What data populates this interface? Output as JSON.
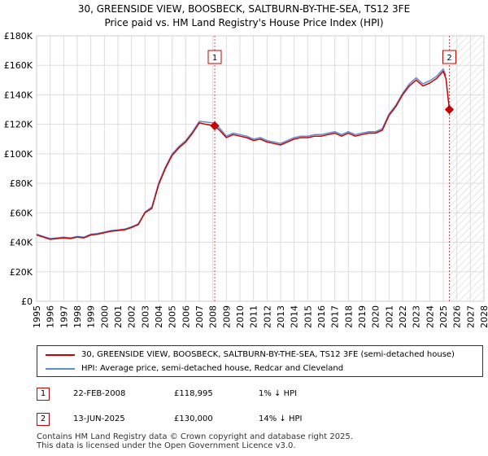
{
  "header": {
    "title_line1": "30, GREENSIDE VIEW, BOOSBECK, SALTBURN-BY-THE-SEA, TS12 3FE",
    "title_line2": "Price paid vs. HM Land Registry's House Price Index (HPI)"
  },
  "chart_data": {
    "type": "line",
    "xlim": [
      1995,
      2028
    ],
    "ylim": [
      0,
      180000
    ],
    "y_ticks": [
      0,
      20000,
      40000,
      60000,
      80000,
      100000,
      120000,
      140000,
      160000,
      180000
    ],
    "y_tick_labels": [
      "£0",
      "£20K",
      "£40K",
      "£60K",
      "£80K",
      "£100K",
      "£120K",
      "£140K",
      "£160K",
      "£180K"
    ],
    "x_ticks": [
      1995,
      1996,
      1997,
      1998,
      1999,
      2000,
      2001,
      2002,
      2003,
      2004,
      2005,
      2006,
      2007,
      2008,
      2009,
      2010,
      2011,
      2012,
      2013,
      2014,
      2015,
      2016,
      2017,
      2018,
      2019,
      2020,
      2021,
      2022,
      2023,
      2024,
      2025,
      2026,
      2027,
      2028
    ],
    "x_tick_labels": [
      "1995",
      "1996",
      "1997",
      "1998",
      "1999",
      "2000",
      "2001",
      "2002",
      "2003",
      "2004",
      "2005",
      "2006",
      "2007",
      "2008",
      "2009",
      "2010",
      "2011",
      "2012",
      "2013",
      "2014",
      "2015",
      "2016",
      "2017",
      "2018",
      "2019",
      "2020",
      "2021",
      "2022",
      "2023",
      "2024",
      "2025",
      "2026",
      "2027",
      "2028"
    ],
    "grid": true,
    "forecast_from": 2025.45,
    "series": [
      {
        "name": "30, GREENSIDE VIEW, BOOSBECK, SALTBURN-BY-THE-SEA, TS12 3FE (semi-detached house)",
        "color": "#cc0000",
        "x": [
          1995,
          1995.5,
          1996,
          1996.5,
          1997,
          1997.5,
          1998,
          1998.5,
          1999,
          1999.5,
          2000,
          2000.5,
          2001,
          2001.5,
          2002,
          2002.5,
          2003,
          2003.5,
          2004,
          2004.5,
          2005,
          2005.5,
          2006,
          2006.5,
          2007,
          2007.5,
          2008.14,
          2008.5,
          2009,
          2009.5,
          2010,
          2010.5,
          2011,
          2011.5,
          2012,
          2012.5,
          2013,
          2013.5,
          2014,
          2014.5,
          2015,
          2015.5,
          2016,
          2016.5,
          2017,
          2017.5,
          2018,
          2018.5,
          2019,
          2019.5,
          2020,
          2020.5,
          2021,
          2021.5,
          2022,
          2022.5,
          2023,
          2023.5,
          2024,
          2024.5,
          2025,
          2025.2,
          2025.45
        ],
        "values": [
          45000,
          43500,
          42000,
          42500,
          43000,
          42500,
          43500,
          43000,
          45000,
          45500,
          46500,
          47500,
          48000,
          48500,
          50000,
          52000,
          60000,
          63000,
          79000,
          90000,
          99000,
          104000,
          108000,
          114000,
          121000,
          120000,
          118995,
          116000,
          111000,
          113000,
          112000,
          111000,
          109000,
          110000,
          108000,
          107000,
          106000,
          108000,
          110000,
          111000,
          111000,
          112000,
          112000,
          113000,
          114000,
          112000,
          114000,
          112000,
          113000,
          114000,
          114000,
          116000,
          126000,
          132000,
          140000,
          146000,
          150000,
          146000,
          148000,
          151000,
          156000,
          151000,
          130000
        ]
      },
      {
        "name": "HPI: Average price, semi-detached house, Redcar and Cleveland",
        "color": "#5b8fd6",
        "x": [
          1995,
          1995.5,
          1996,
          1996.5,
          1997,
          1997.5,
          1998,
          1998.5,
          1999,
          1999.5,
          2000,
          2000.5,
          2001,
          2001.5,
          2002,
          2002.5,
          2003,
          2003.5,
          2004,
          2004.5,
          2005,
          2005.5,
          2006,
          2006.5,
          2007,
          2007.5,
          2008,
          2008.5,
          2009,
          2009.5,
          2010,
          2010.5,
          2011,
          2011.5,
          2012,
          2012.5,
          2013,
          2013.5,
          2014,
          2014.5,
          2015,
          2015.5,
          2016,
          2016.5,
          2017,
          2017.5,
          2018,
          2018.5,
          2019,
          2019.5,
          2020,
          2020.5,
          2021,
          2021.5,
          2022,
          2022.5,
          2023,
          2023.5,
          2024,
          2024.5,
          2025,
          2025.2
        ],
        "values": [
          45500,
          44000,
          42500,
          43000,
          43500,
          43000,
          44000,
          43500,
          45500,
          46000,
          47000,
          48000,
          48500,
          49000,
          50500,
          52500,
          60500,
          64000,
          80000,
          91000,
          100000,
          105000,
          109000,
          115000,
          122000,
          121500,
          121000,
          117500,
          112000,
          114000,
          113000,
          112000,
          110000,
          111000,
          109000,
          108000,
          107000,
          109000,
          111000,
          112000,
          112000,
          113000,
          113000,
          114000,
          115000,
          113000,
          115000,
          113000,
          114000,
          115000,
          115000,
          117000,
          127000,
          133000,
          141000,
          147500,
          151500,
          147500,
          149500,
          152500,
          157500,
          153000
        ]
      }
    ],
    "annotations": [
      {
        "label": "1",
        "x": 2008.14,
        "value": 118995
      },
      {
        "label": "2",
        "x": 2025.45,
        "value": 130000
      }
    ]
  },
  "legend": {
    "items": [
      {
        "label": "30, GREENSIDE VIEW, BOOSBECK, SALTBURN-BY-THE-SEA, TS12 3FE (semi-detached house)",
        "color": "#cc0000"
      },
      {
        "label": "HPI: Average price, semi-detached house, Redcar and Cleveland",
        "color": "#5b8fd6"
      }
    ]
  },
  "sales": [
    {
      "num": "1",
      "date": "22-FEB-2008",
      "price": "£118,995",
      "hpi": "1% ↓ HPI"
    },
    {
      "num": "2",
      "date": "13-JUN-2025",
      "price": "£130,000",
      "hpi": "14% ↓ HPI"
    }
  ],
  "footer": {
    "line1": "Contains HM Land Registry data © Crown copyright and database right 2025.",
    "line2": "This data is licensed under the Open Government Licence v3.0."
  }
}
